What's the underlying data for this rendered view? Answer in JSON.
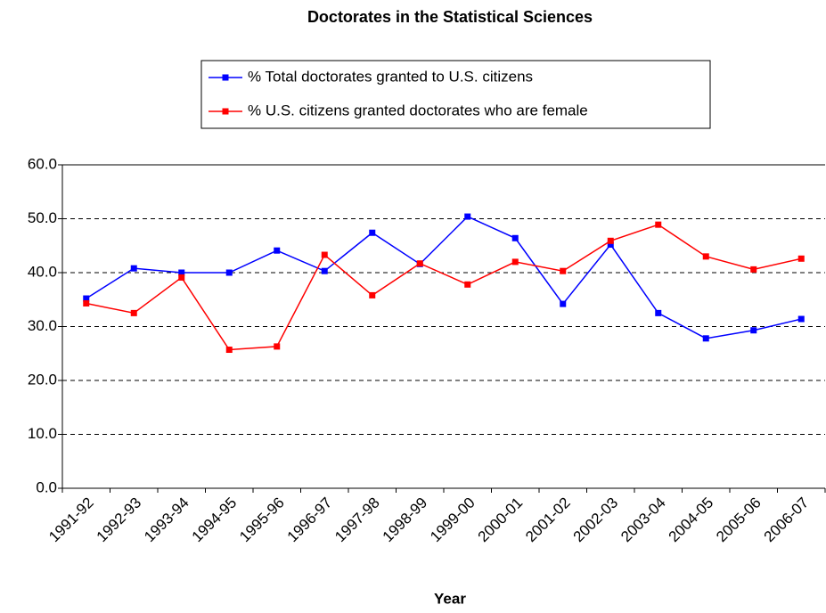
{
  "chart_data": {
    "type": "line",
    "title": "Doctorates in the Statistical Sciences",
    "x_label": "Year",
    "categories": [
      "1991-92",
      "1992-93",
      "1993-94",
      "1994-95",
      "1995-96",
      "1996-97",
      "1997-98",
      "1998-99",
      "1999-00",
      "2000-01",
      "2001-02",
      "2002-03",
      "2003-04",
      "2004-05",
      "2005-06",
      "2006-07"
    ],
    "series": [
      {
        "name": "% Total doctorates granted to U.S. citizens",
        "color": "#0000ff",
        "values": [
          35.2,
          40.8,
          40.0,
          40.0,
          44.1,
          40.3,
          47.4,
          41.6,
          50.4,
          46.4,
          34.2,
          45.2,
          32.5,
          27.8,
          29.3,
          31.4
        ]
      },
      {
        "name": "% U.S. citizens granted doctorates who are female",
        "color": "#ff0000",
        "values": [
          34.3,
          32.5,
          39.1,
          25.7,
          26.3,
          43.3,
          35.8,
          41.7,
          37.8,
          42.0,
          40.3,
          45.9,
          48.9,
          43.0,
          40.6,
          42.6
        ]
      }
    ],
    "ylim": [
      0,
      60
    ],
    "yticks": [
      {
        "value": 0,
        "label": "0.0"
      },
      {
        "value": 10,
        "label": "10.0"
      },
      {
        "value": 20,
        "label": "20.0"
      },
      {
        "value": 30,
        "label": "30.0"
      },
      {
        "value": 40,
        "label": "40.0"
      },
      {
        "value": 50,
        "label": "50.0"
      },
      {
        "value": 60,
        "label": "60.0"
      }
    ],
    "grid": true,
    "legend": "top"
  }
}
